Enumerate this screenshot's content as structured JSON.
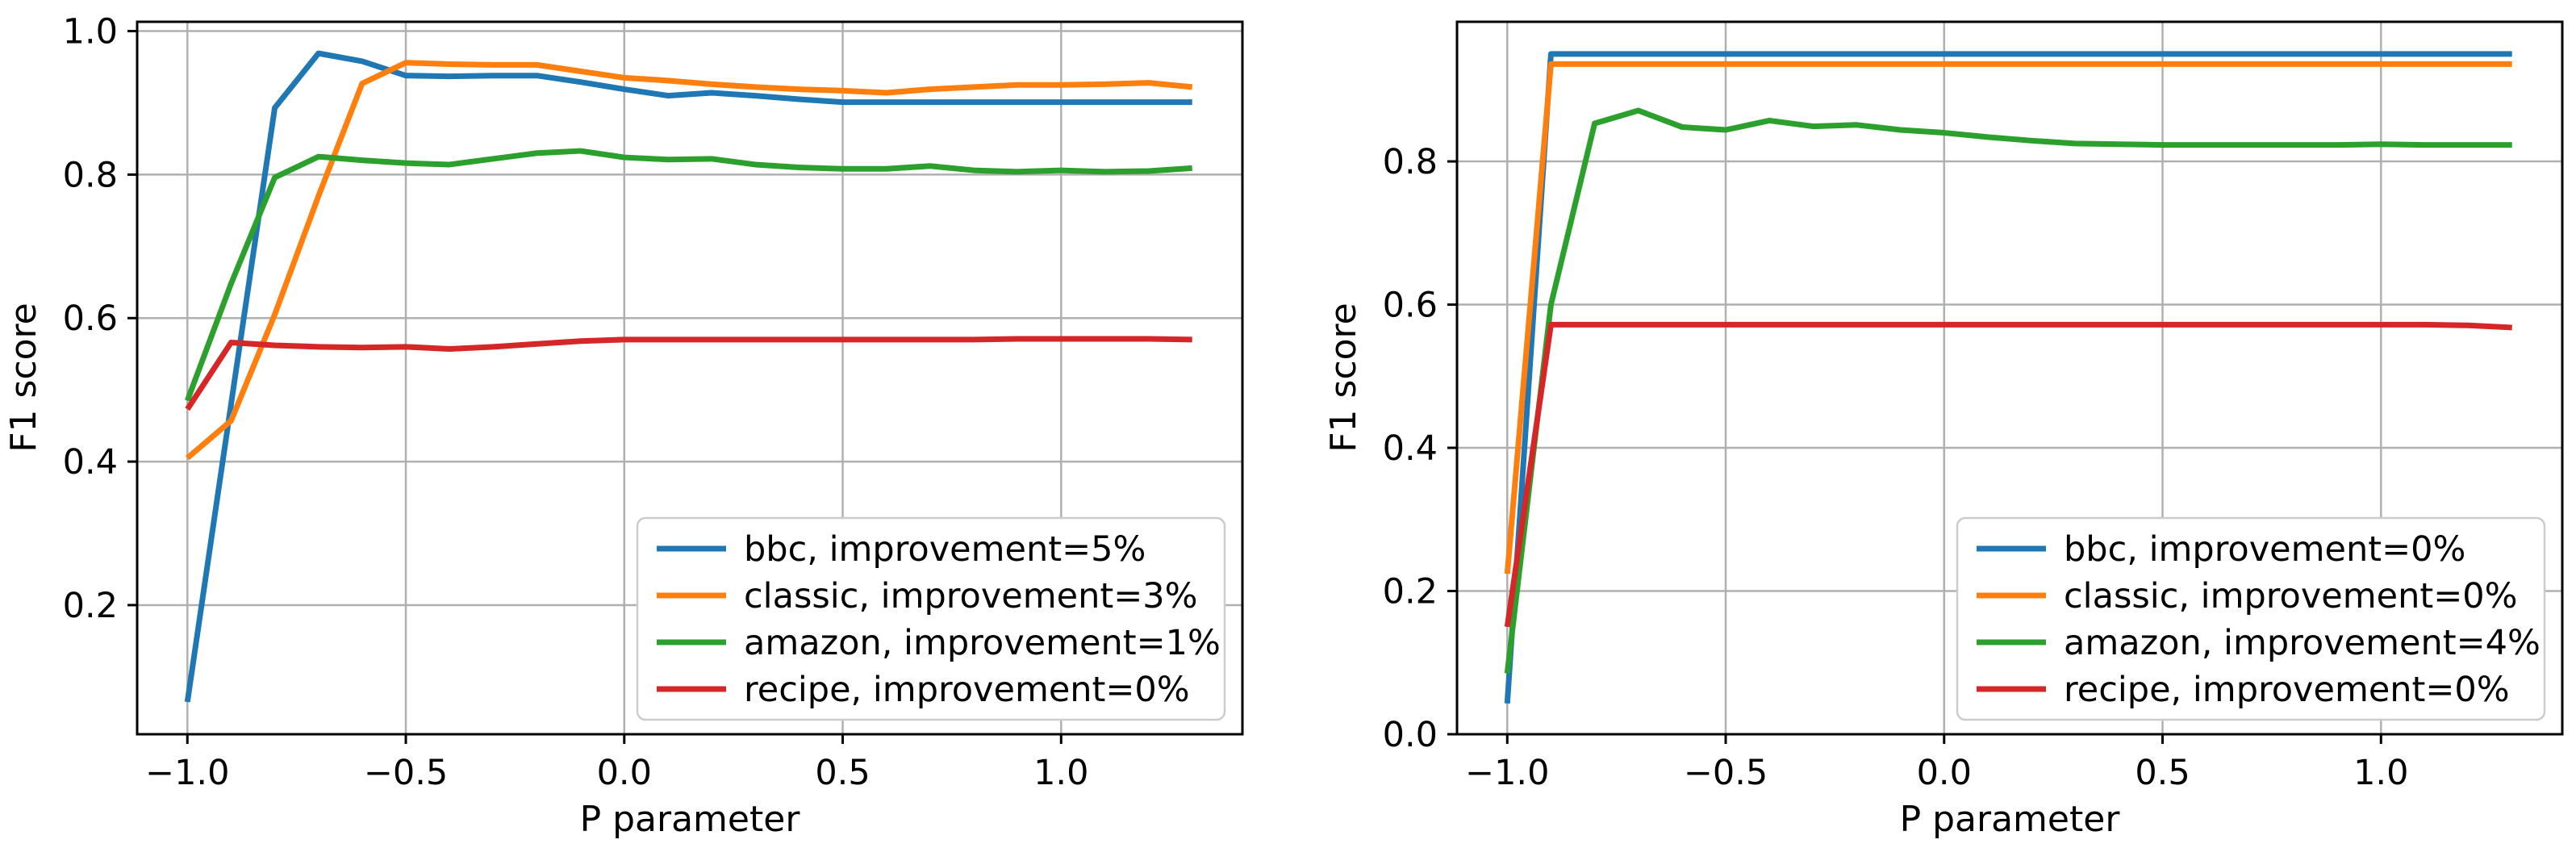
{
  "figure": {
    "background": "#ffffff"
  },
  "chart_data": [
    {
      "type": "line",
      "title": "",
      "xlabel": "P parameter",
      "ylabel": "F1 score",
      "xlim": [
        -1.115,
        1.415
      ],
      "ylim": [
        0.02,
        1.013
      ],
      "xticks": [
        -1.0,
        -0.5,
        0.0,
        0.5,
        1.0
      ],
      "yticks": [
        0.2,
        0.4,
        0.6,
        0.8,
        1.0
      ],
      "grid": true,
      "legend_position": "lower right",
      "x": [
        -1.0,
        -0.9,
        -0.8,
        -0.7,
        -0.6,
        -0.5,
        -0.4,
        -0.3,
        -0.2,
        -0.1,
        0.0,
        0.1,
        0.2,
        0.3,
        0.4,
        0.5,
        0.6,
        0.7,
        0.8,
        0.9,
        1.0,
        1.1,
        1.2,
        1.3
      ],
      "series": [
        {
          "key": "bbc",
          "name": "bbc, improvement=5%",
          "color": "#1f77b4",
          "values": [
            0.065,
            0.48,
            0.893,
            0.969,
            0.958,
            0.938,
            0.937,
            0.938,
            0.938,
            0.929,
            0.919,
            0.91,
            0.914,
            0.91,
            0.905,
            0.901,
            0.901,
            0.901,
            0.901,
            0.901,
            0.901,
            0.901,
            0.901,
            0.901
          ]
        },
        {
          "key": "classic",
          "name": "classic, improvement=3%",
          "color": "#ff7f0e",
          "values": [
            0.405,
            0.457,
            0.605,
            0.77,
            0.927,
            0.956,
            0.954,
            0.953,
            0.953,
            0.944,
            0.935,
            0.931,
            0.926,
            0.922,
            0.919,
            0.917,
            0.914,
            0.919,
            0.922,
            0.925,
            0.925,
            0.926,
            0.928,
            0.922
          ]
        },
        {
          "key": "amazon",
          "name": "amazon, improvement=1%",
          "color": "#2ca02c",
          "values": [
            0.485,
            0.648,
            0.796,
            0.825,
            0.82,
            0.816,
            0.814,
            0.822,
            0.83,
            0.833,
            0.824,
            0.821,
            0.822,
            0.814,
            0.81,
            0.808,
            0.808,
            0.812,
            0.806,
            0.804,
            0.806,
            0.804,
            0.805,
            0.809
          ]
        },
        {
          "key": "recipe",
          "name": "recipe, improvement=0%",
          "color": "#d62728",
          "values": [
            0.473,
            0.566,
            0.562,
            0.56,
            0.559,
            0.56,
            0.557,
            0.56,
            0.564,
            0.568,
            0.57,
            0.57,
            0.57,
            0.57,
            0.57,
            0.57,
            0.57,
            0.57,
            0.57,
            0.571,
            0.571,
            0.571,
            0.571,
            0.57
          ]
        }
      ]
    },
    {
      "type": "line",
      "title": "",
      "xlabel": "P parameter",
      "ylabel": "F1 score",
      "xlim": [
        -1.115,
        1.415
      ],
      "ylim": [
        0.0,
        0.995
      ],
      "xticks": [
        -1.0,
        -0.5,
        0.0,
        0.5,
        1.0
      ],
      "yticks": [
        0.0,
        0.2,
        0.4,
        0.6,
        0.8
      ],
      "grid": true,
      "legend_position": "lower right",
      "x": [
        -1.0,
        -0.9,
        -0.8,
        -0.7,
        -0.6,
        -0.5,
        -0.4,
        -0.3,
        -0.2,
        -0.1,
        0.0,
        0.1,
        0.2,
        0.3,
        0.4,
        0.5,
        0.6,
        0.7,
        0.8,
        0.9,
        1.0,
        1.1,
        1.2,
        1.3
      ],
      "series": [
        {
          "key": "bbc",
          "name": "bbc, improvement=0%",
          "color": "#1f77b4",
          "values": [
            0.043,
            0.95,
            0.95,
            0.95,
            0.95,
            0.95,
            0.95,
            0.95,
            0.95,
            0.95,
            0.95,
            0.95,
            0.95,
            0.95,
            0.95,
            0.95,
            0.95,
            0.95,
            0.95,
            0.95,
            0.95,
            0.95,
            0.95,
            0.95
          ]
        },
        {
          "key": "classic",
          "name": "classic, improvement=0%",
          "color": "#ff7f0e",
          "values": [
            0.224,
            0.936,
            0.936,
            0.936,
            0.936,
            0.936,
            0.936,
            0.936,
            0.936,
            0.936,
            0.936,
            0.936,
            0.936,
            0.936,
            0.936,
            0.936,
            0.936,
            0.936,
            0.936,
            0.936,
            0.936,
            0.936,
            0.936,
            0.936
          ]
        },
        {
          "key": "amazon",
          "name": "amazon, improvement=4%",
          "color": "#2ca02c",
          "values": [
            0.085,
            0.6,
            0.853,
            0.871,
            0.848,
            0.844,
            0.857,
            0.849,
            0.851,
            0.844,
            0.84,
            0.834,
            0.829,
            0.825,
            0.824,
            0.823,
            0.823,
            0.823,
            0.823,
            0.823,
            0.824,
            0.823,
            0.823,
            0.823
          ]
        },
        {
          "key": "recipe",
          "name": "recipe, improvement=0%",
          "color": "#d62728",
          "values": [
            0.15,
            0.572,
            0.572,
            0.572,
            0.572,
            0.572,
            0.572,
            0.572,
            0.572,
            0.572,
            0.572,
            0.572,
            0.572,
            0.572,
            0.572,
            0.572,
            0.572,
            0.572,
            0.572,
            0.572,
            0.572,
            0.572,
            0.571,
            0.568
          ]
        }
      ]
    }
  ]
}
